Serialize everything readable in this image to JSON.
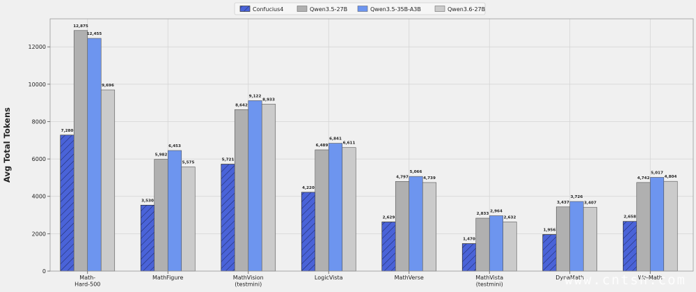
{
  "chart_data": {
    "type": "bar",
    "ylabel": "Avg Total Tokens",
    "ylim": [
      0,
      13500
    ],
    "yticks": [
      0,
      2000,
      4000,
      6000,
      8000,
      10000,
      12000
    ],
    "grid": true,
    "legend_position": "top-center",
    "categories": [
      [
        "Math-",
        "Hard-500"
      ],
      [
        "MathFigure"
      ],
      [
        "MathVision",
        "(testmini)"
      ],
      [
        "LogicVista"
      ],
      [
        "MathVerse"
      ],
      [
        "MathVista",
        "(testmini)"
      ],
      [
        "DynaMath"
      ],
      [
        "We-Math"
      ]
    ],
    "series": [
      {
        "name": "Confucius4",
        "color": "#4a63d8",
        "hatch": true,
        "values": [
          7280,
          3530,
          5721,
          4220,
          2629,
          1470,
          1956,
          2658
        ],
        "labels": [
          "7,280",
          "3,530",
          "5,721",
          "4,220",
          "2,629",
          "1,470",
          "1,956",
          "2,658"
        ]
      },
      {
        "name": "Qwen3.5-27B",
        "color": "#b0b0b0",
        "hatch": false,
        "values": [
          12875,
          5982,
          8642,
          6489,
          4797,
          2833,
          3437,
          4742
        ],
        "labels": [
          "12,875",
          "5,982",
          "8,642",
          "6,489",
          "4,797",
          "2,833",
          "3,437",
          "4,742"
        ]
      },
      {
        "name": "Qwen3.5-35B-A3B",
        "color": "#6d95ef",
        "hatch": false,
        "values": [
          12455,
          6453,
          9122,
          6841,
          5066,
          2964,
          3726,
          5017
        ],
        "labels": [
          "12,455",
          "6,453",
          "9,122",
          "6,841",
          "5,066",
          "2,964",
          "3,726",
          "5,017"
        ]
      },
      {
        "name": "Qwen3.6-27B",
        "color": "#cbcbcb",
        "hatch": false,
        "values": [
          9696,
          5575,
          8933,
          6611,
          4739,
          2632,
          3407,
          4804
        ],
        "labels": [
          "9,696",
          "5,575",
          "8,933",
          "6,611",
          "4,739",
          "2,632",
          "3,407",
          "4,804"
        ]
      }
    ]
  },
  "watermark": "www.cntsh.com"
}
